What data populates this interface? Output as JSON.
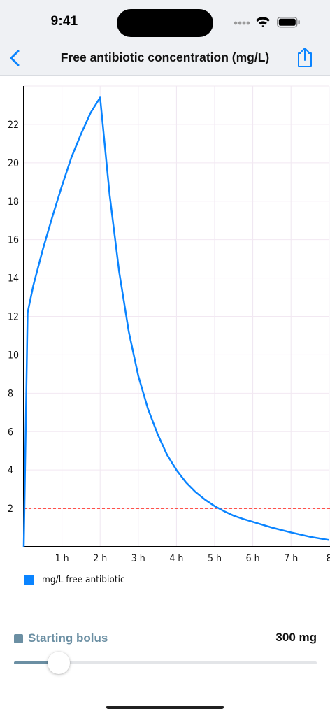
{
  "status_bar": {
    "time": "9:41"
  },
  "nav": {
    "title": "Free antibiotic concentration (mg/L)",
    "back_icon": "chevron-left-icon",
    "share_icon": "share-icon",
    "accent": "#0a84ff"
  },
  "chart_data": {
    "type": "line",
    "title": "",
    "xlabel": "",
    "ylabel": "",
    "xlim": [
      0,
      8
    ],
    "ylim": [
      0,
      24
    ],
    "grid": true,
    "x_ticks": [
      "1 h",
      "2 h",
      "3 h",
      "4 h",
      "5 h",
      "6 h",
      "7 h",
      "8"
    ],
    "y_ticks": [
      "2",
      "4",
      "6",
      "8",
      "10",
      "12",
      "14",
      "16",
      "18",
      "20",
      "22"
    ],
    "series": [
      {
        "name": "mg/L free antibiotic",
        "color": "#0a84ff",
        "x": [
          0,
          0.1,
          0.25,
          0.5,
          0.75,
          1.0,
          1.25,
          1.5,
          1.75,
          2.0,
          2.25,
          2.5,
          2.75,
          3.0,
          3.25,
          3.5,
          3.75,
          4.0,
          4.25,
          4.5,
          4.75,
          5.0,
          5.25,
          5.5,
          5.75,
          6.0,
          6.5,
          7.0,
          7.5,
          8.0
        ],
        "y": [
          0,
          12.2,
          13.6,
          15.5,
          17.2,
          18.8,
          20.3,
          21.5,
          22.6,
          23.4,
          18.3,
          14.3,
          11.2,
          8.9,
          7.2,
          5.9,
          4.8,
          4.0,
          3.35,
          2.85,
          2.45,
          2.12,
          1.85,
          1.62,
          1.45,
          1.3,
          1.0,
          0.75,
          0.52,
          0.35
        ]
      }
    ],
    "threshold": {
      "y": 2,
      "color": "#ff3b30",
      "style": "dashed"
    },
    "legend": {
      "label": "mg/L free antibiotic",
      "placement": "bottom-left"
    }
  },
  "control": {
    "label": "Starting bolus",
    "value_text": "300 mg",
    "slider_fraction": 0.11,
    "accent": "#6b8fa3"
  }
}
